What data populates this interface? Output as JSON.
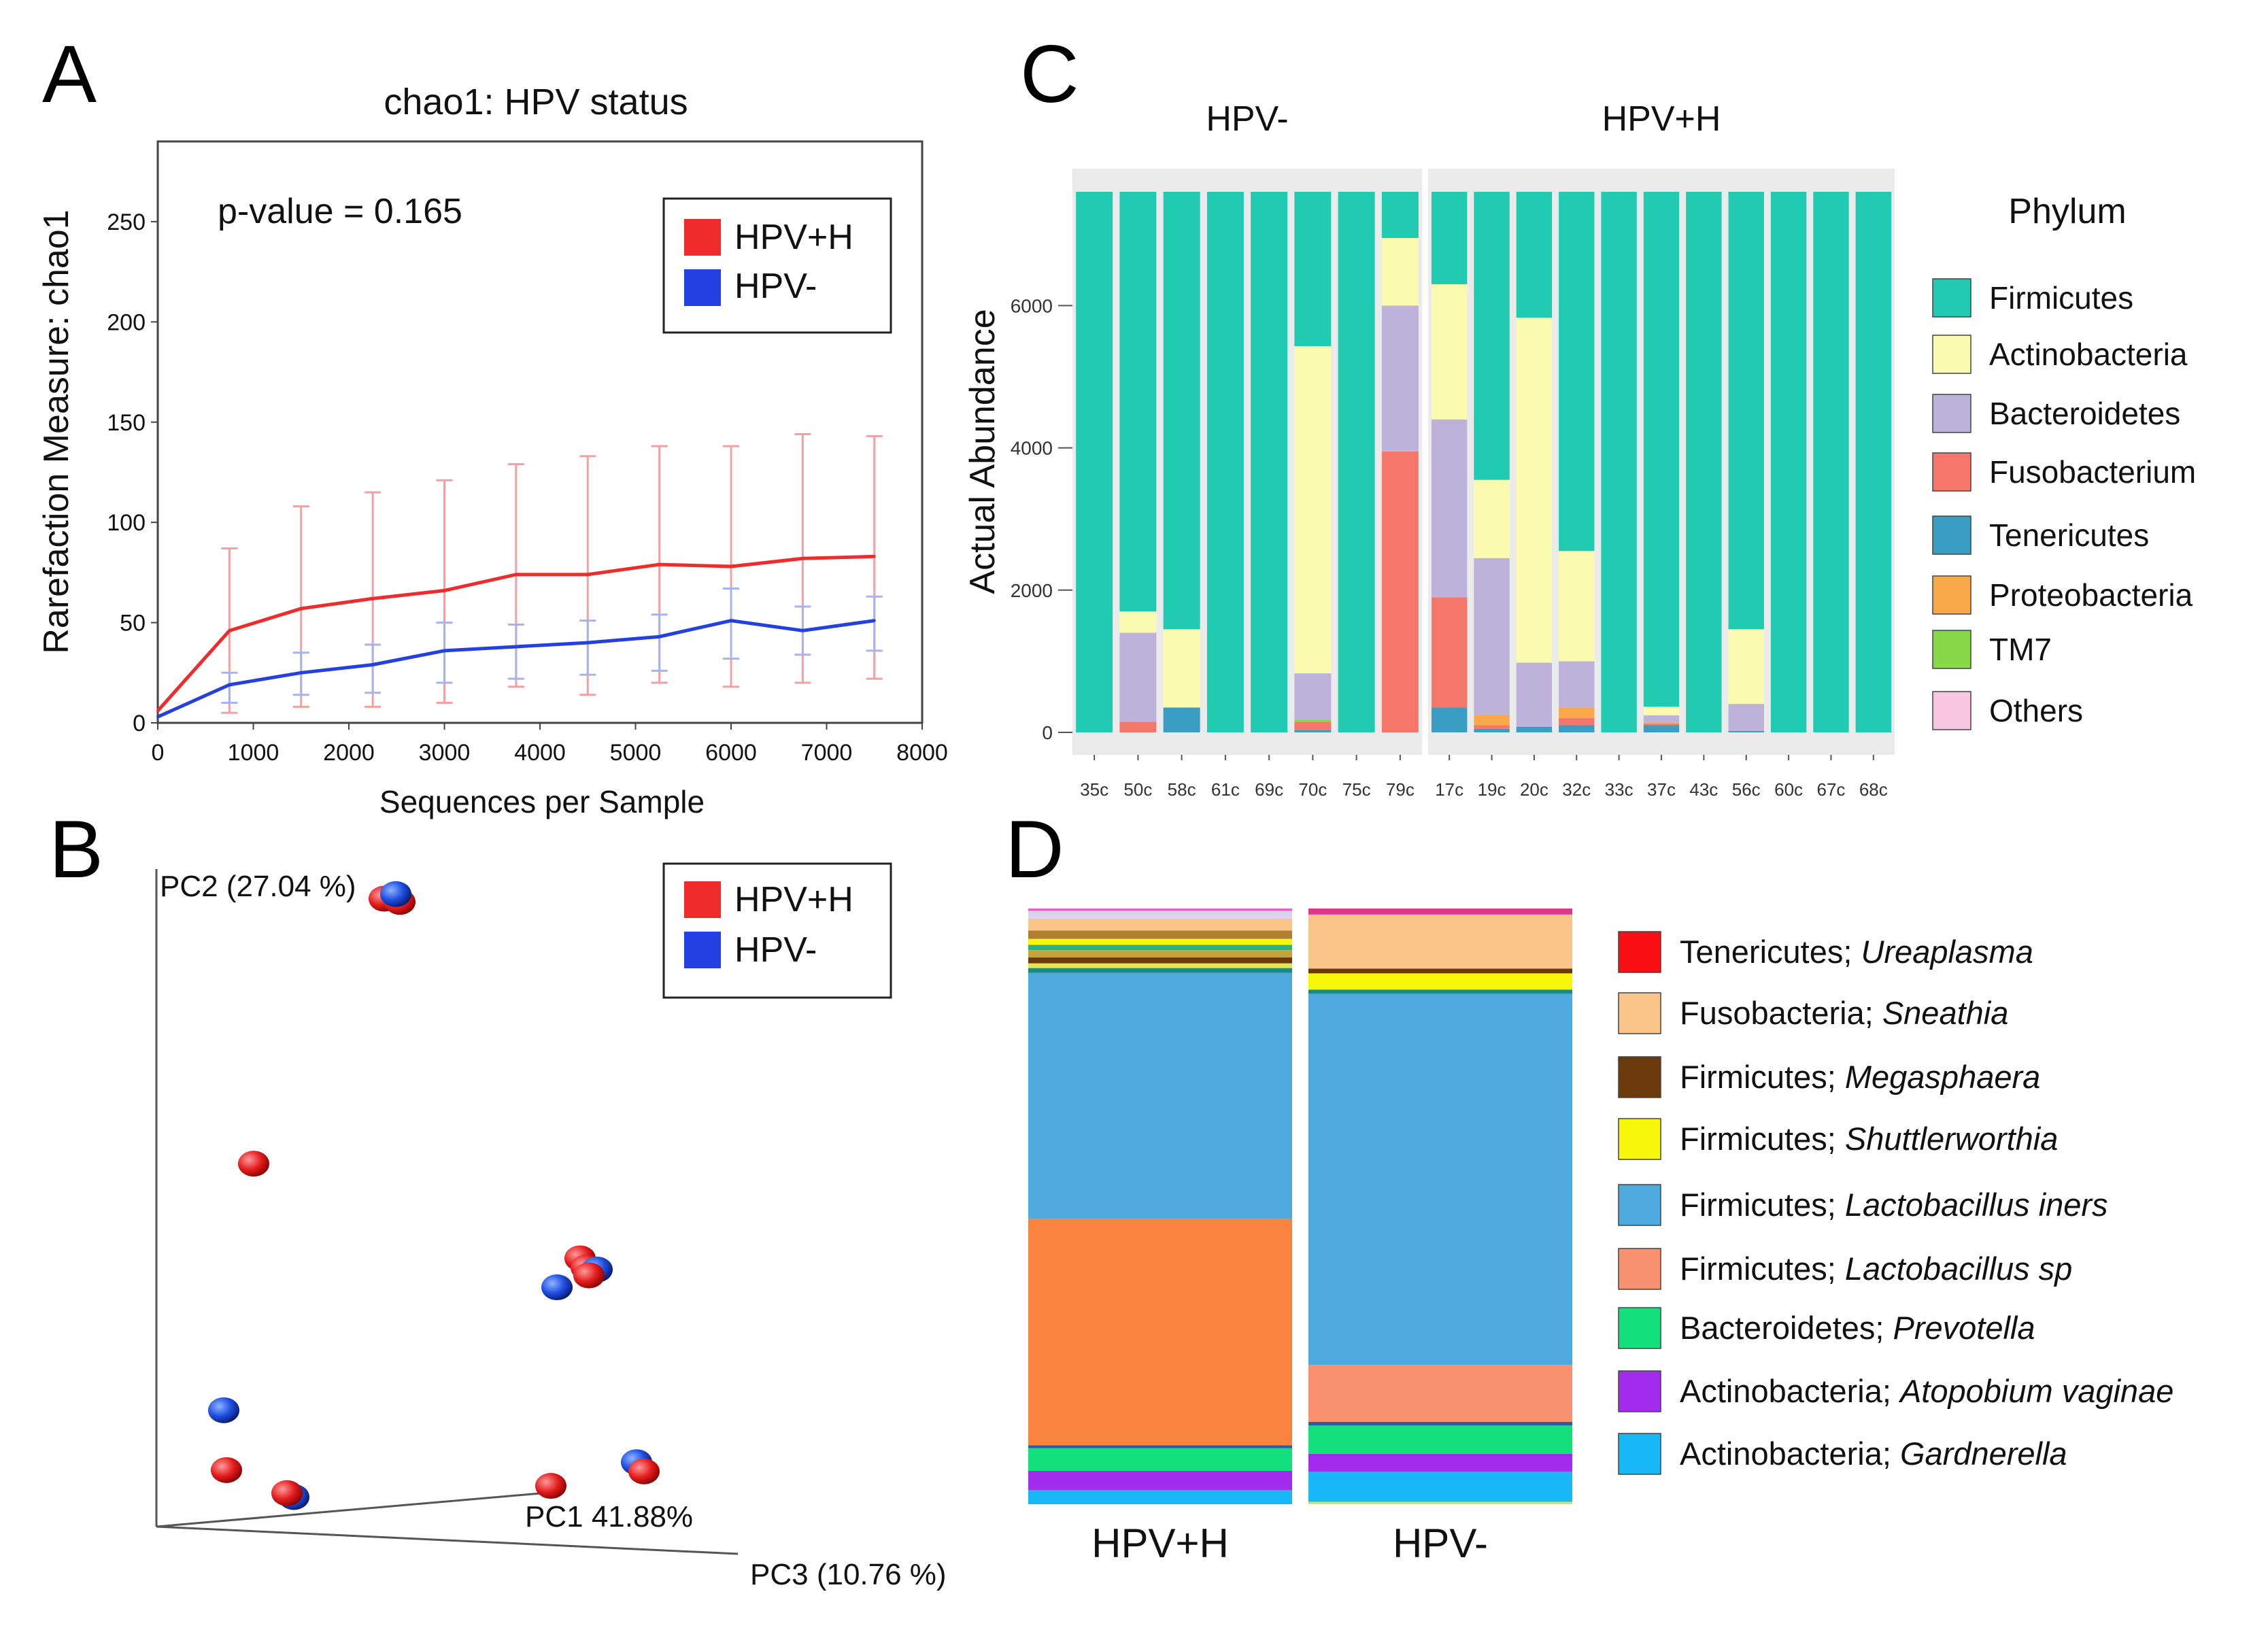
{
  "panels": {
    "A": "A",
    "B": "B",
    "C": "C",
    "D": "D"
  },
  "colors": {
    "hpv_pos": "#ef2b2b",
    "hpv_neg": "#2440e0",
    "err_pos": "#f2a0a0",
    "err_neg": "#a7b3f0",
    "c_bg": "#ebebeb"
  },
  "chart_data": [
    {
      "panel": "A",
      "type": "line",
      "title": "chao1: HPV status",
      "xlabel": "Sequences per Sample",
      "ylabel": "Rarefaction Measure: chao1",
      "annotation": "p-value = 0.165",
      "xlim": [
        0,
        8000
      ],
      "ylim": [
        0,
        290
      ],
      "xticks": [
        0,
        1000,
        2000,
        3000,
        4000,
        5000,
        6000,
        7000,
        8000
      ],
      "yticks": [
        0,
        50,
        100,
        150,
        200,
        250
      ],
      "x": [
        0,
        750,
        1500,
        2250,
        3000,
        3750,
        4500,
        5250,
        6000,
        6750,
        7500
      ],
      "series": [
        {
          "name": "HPV+H",
          "color": "#ef2b2b",
          "err_color": "#f2a0a0",
          "values": [
            6,
            46,
            57,
            62,
            66,
            74,
            74,
            79,
            78,
            82,
            83
          ],
          "err_low": [
            3,
            5,
            8,
            8,
            10,
            18,
            14,
            20,
            18,
            20,
            22
          ],
          "err_high": [
            10,
            87,
            108,
            115,
            121,
            129,
            133,
            138,
            138,
            144,
            143
          ]
        },
        {
          "name": "HPV-",
          "color": "#2440e0",
          "err_color": "#a7b3f0",
          "values": [
            3,
            19,
            25,
            29,
            36,
            38,
            40,
            43,
            51,
            46,
            51
          ],
          "err_low": [
            1,
            10,
            14,
            15,
            20,
            22,
            24,
            26,
            32,
            34,
            36
          ],
          "err_high": [
            6,
            25,
            35,
            39,
            50,
            49,
            51,
            54,
            67,
            58,
            63
          ]
        }
      ],
      "legend": [
        "HPV+H",
        "HPV-"
      ]
    },
    {
      "panel": "B",
      "type": "scatter",
      "axes": {
        "pc1": "PC1 41.88%",
        "pc2": "PC2 (27.04 %)",
        "pc3": "PC3 (10.76 %)"
      },
      "legend": [
        "HPV+H",
        "HPV-"
      ],
      "points": [
        {
          "group": "HPV+H",
          "x": 0.335,
          "y": 0.955
        },
        {
          "group": "HPV+H",
          "x": 0.358,
          "y": 0.95
        },
        {
          "group": "HPV-",
          "x": 0.352,
          "y": 0.962
        },
        {
          "group": "HPV+H",
          "x": 0.143,
          "y": 0.552
        },
        {
          "group": "HPV+H",
          "x": 0.623,
          "y": 0.408
        },
        {
          "group": "HPV+H",
          "x": 0.632,
          "y": 0.394
        },
        {
          "group": "HPV-",
          "x": 0.648,
          "y": 0.391
        },
        {
          "group": "HPV+H",
          "x": 0.636,
          "y": 0.382
        },
        {
          "group": "HPV-",
          "x": 0.589,
          "y": 0.364
        },
        {
          "group": "HPV-",
          "x": 0.099,
          "y": 0.177
        },
        {
          "group": "HPV-",
          "x": 0.706,
          "y": 0.098
        },
        {
          "group": "HPV+H",
          "x": 0.717,
          "y": 0.084
        },
        {
          "group": "HPV+H",
          "x": 0.103,
          "y": 0.086
        },
        {
          "group": "HPV-",
          "x": 0.202,
          "y": 0.045
        },
        {
          "group": "HPV+H",
          "x": 0.192,
          "y": 0.051
        },
        {
          "group": "HPV+H",
          "x": 0.58,
          "y": 0.062
        }
      ]
    },
    {
      "panel": "C",
      "type": "bar",
      "stacked": true,
      "ylabel": "Actual Abundance",
      "ylim": [
        0,
        7600
      ],
      "yticks": [
        0,
        2000,
        4000,
        6000
      ],
      "total": 7600,
      "facets": [
        {
          "name": "HPV-",
          "categories": [
            "35c",
            "50c",
            "58c",
            "61c",
            "69c",
            "70c",
            "75c",
            "79c"
          ]
        },
        {
          "name": "HPV+H",
          "categories": [
            "17c",
            "19c",
            "20c",
            "32c",
            "33c",
            "37c",
            "43c",
            "56c",
            "60c",
            "67c",
            "68c"
          ]
        }
      ],
      "legend_title": "Phylum",
      "legend_labels": [
        "Firmicutes",
        "Actinobacteria",
        "Bacteroidetes",
        "Fusobacterium",
        "Tenericutes",
        "Proteobacteria",
        "TM7",
        "Others"
      ],
      "series": [
        {
          "name": "Tenericutes",
          "color": "#3a9dc4",
          "values": [
            0,
            0,
            350,
            0,
            0,
            30,
            0,
            0,
            350,
            50,
            80,
            100,
            0,
            100,
            0,
            20,
            0,
            0,
            0
          ]
        },
        {
          "name": "Fusobacterium",
          "color": "#f5766a",
          "values": [
            0,
            150,
            0,
            0,
            0,
            120,
            0,
            3950,
            1550,
            50,
            0,
            100,
            0,
            20,
            0,
            0,
            0,
            0,
            0
          ]
        },
        {
          "name": "Proteobacteria",
          "color": "#faa94a",
          "values": [
            0,
            0,
            0,
            0,
            0,
            0,
            0,
            0,
            0,
            150,
            0,
            150,
            0,
            20,
            0,
            0,
            0,
            0,
            0
          ]
        },
        {
          "name": "TM7",
          "color": "#86d848",
          "values": [
            0,
            0,
            0,
            0,
            0,
            30,
            0,
            0,
            0,
            0,
            0,
            0,
            0,
            0,
            0,
            0,
            0,
            0,
            0
          ]
        },
        {
          "name": "Bacteroidetes",
          "color": "#bcb2da",
          "values": [
            0,
            1250,
            0,
            0,
            0,
            650,
            0,
            2050,
            2500,
            2200,
            900,
            650,
            0,
            100,
            0,
            380,
            0,
            0,
            0
          ]
        },
        {
          "name": "Actinobacteria",
          "color": "#fbfbaf",
          "values": [
            0,
            300,
            1100,
            0,
            0,
            4600,
            0,
            950,
            1900,
            1100,
            4850,
            1550,
            0,
            120,
            0,
            1050,
            0,
            0,
            0
          ]
        },
        {
          "name": "Others",
          "color": "#f7c6e0",
          "values": [
            0,
            0,
            0,
            0,
            0,
            0,
            0,
            0,
            0,
            0,
            0,
            0,
            0,
            0,
            0,
            0,
            0,
            0,
            0
          ]
        },
        {
          "name": "Firmicutes",
          "color": "#21cbb2",
          "values": [
            7600,
            5900,
            6150,
            7600,
            7600,
            2170,
            7600,
            650,
            1300,
            4050,
            1770,
            5050,
            7600,
            7240,
            7600,
            6150,
            7600,
            7600,
            7600
          ]
        }
      ]
    },
    {
      "panel": "D",
      "type": "bar",
      "stacked": true,
      "categories": [
        "HPV+H",
        "HPV-"
      ],
      "legend_labels": [
        {
          "phylum": "Tenericutes; ",
          "genus": "Ureaplasma",
          "color": "#fa0f14"
        },
        {
          "phylum": "Fusobacteria; ",
          "genus": "Sneathia",
          "color": "#fbc489"
        },
        {
          "phylum": "Firmicutes; ",
          "genus": "Megasphaera",
          "color": "#6b3a0a"
        },
        {
          "phylum": "Firmicutes; ",
          "genus": "Shuttlerworthia",
          "color": "#f7f70a"
        },
        {
          "phylum": "Firmicutes; ",
          "genus": "Lactobacillus iners",
          "color": "#4ea9de"
        },
        {
          "phylum": "Firmicutes; ",
          "genus": "Lactobacillus sp",
          "color": "#f8916f"
        },
        {
          "phylum": "Bacteroidetes; ",
          "genus": "Prevotella",
          "color": "#11e07d"
        },
        {
          "phylum": "Actinobacteria; ",
          "genus": "Atopobium vaginae",
          "color": "#a12cee"
        },
        {
          "phylum": "Actinobacteria; ",
          "genus": "Gardnerella",
          "color": "#17b8f5"
        }
      ],
      "stacks": [
        {
          "name": "HPV+H",
          "segments": [
            {
              "color": "#17b8f5",
              "value": 2.4
            },
            {
              "color": "#a12cee",
              "value": 3.2
            },
            {
              "color": "#11e07d",
              "value": 3.8
            },
            {
              "color": "#2b5ca8",
              "value": 0.5
            },
            {
              "color": "#f98440",
              "value": 38.0
            },
            {
              "color": "#4ea9de",
              "value": 41.3
            },
            {
              "color": "#1a8a86",
              "value": 0.8
            },
            {
              "color": "#e2e64a",
              "value": 0.8
            },
            {
              "color": "#6b3a0a",
              "value": 1.0
            },
            {
              "color": "#c3a53c",
              "value": 1.2
            },
            {
              "color": "#35b07a",
              "value": 0.9
            },
            {
              "color": "#f7f70a",
              "value": 1.0
            },
            {
              "color": "#b08030",
              "value": 1.4
            },
            {
              "color": "#fbc489",
              "value": 2.0
            },
            {
              "color": "#dcd2ee",
              "value": 1.3
            },
            {
              "color": "#e860c0",
              "value": 0.4
            }
          ]
        },
        {
          "name": "HPV-",
          "segments": [
            {
              "color": "#d8e060",
              "value": 0.4
            },
            {
              "color": "#17b8f5",
              "value": 5.0
            },
            {
              "color": "#a12cee",
              "value": 3.0
            },
            {
              "color": "#11e07d",
              "value": 4.7
            },
            {
              "color": "#2b5ca8",
              "value": 0.6
            },
            {
              "color": "#f8916f",
              "value": 9.5
            },
            {
              "color": "#4ea9de",
              "value": 61.8
            },
            {
              "color": "#1a8a86",
              "value": 0.7
            },
            {
              "color": "#f7f70a",
              "value": 2.7
            },
            {
              "color": "#6b3a0a",
              "value": 0.8
            },
            {
              "color": "#fbc489",
              "value": 9.0
            },
            {
              "color": "#e0368a",
              "value": 1.0
            }
          ]
        }
      ]
    }
  ]
}
